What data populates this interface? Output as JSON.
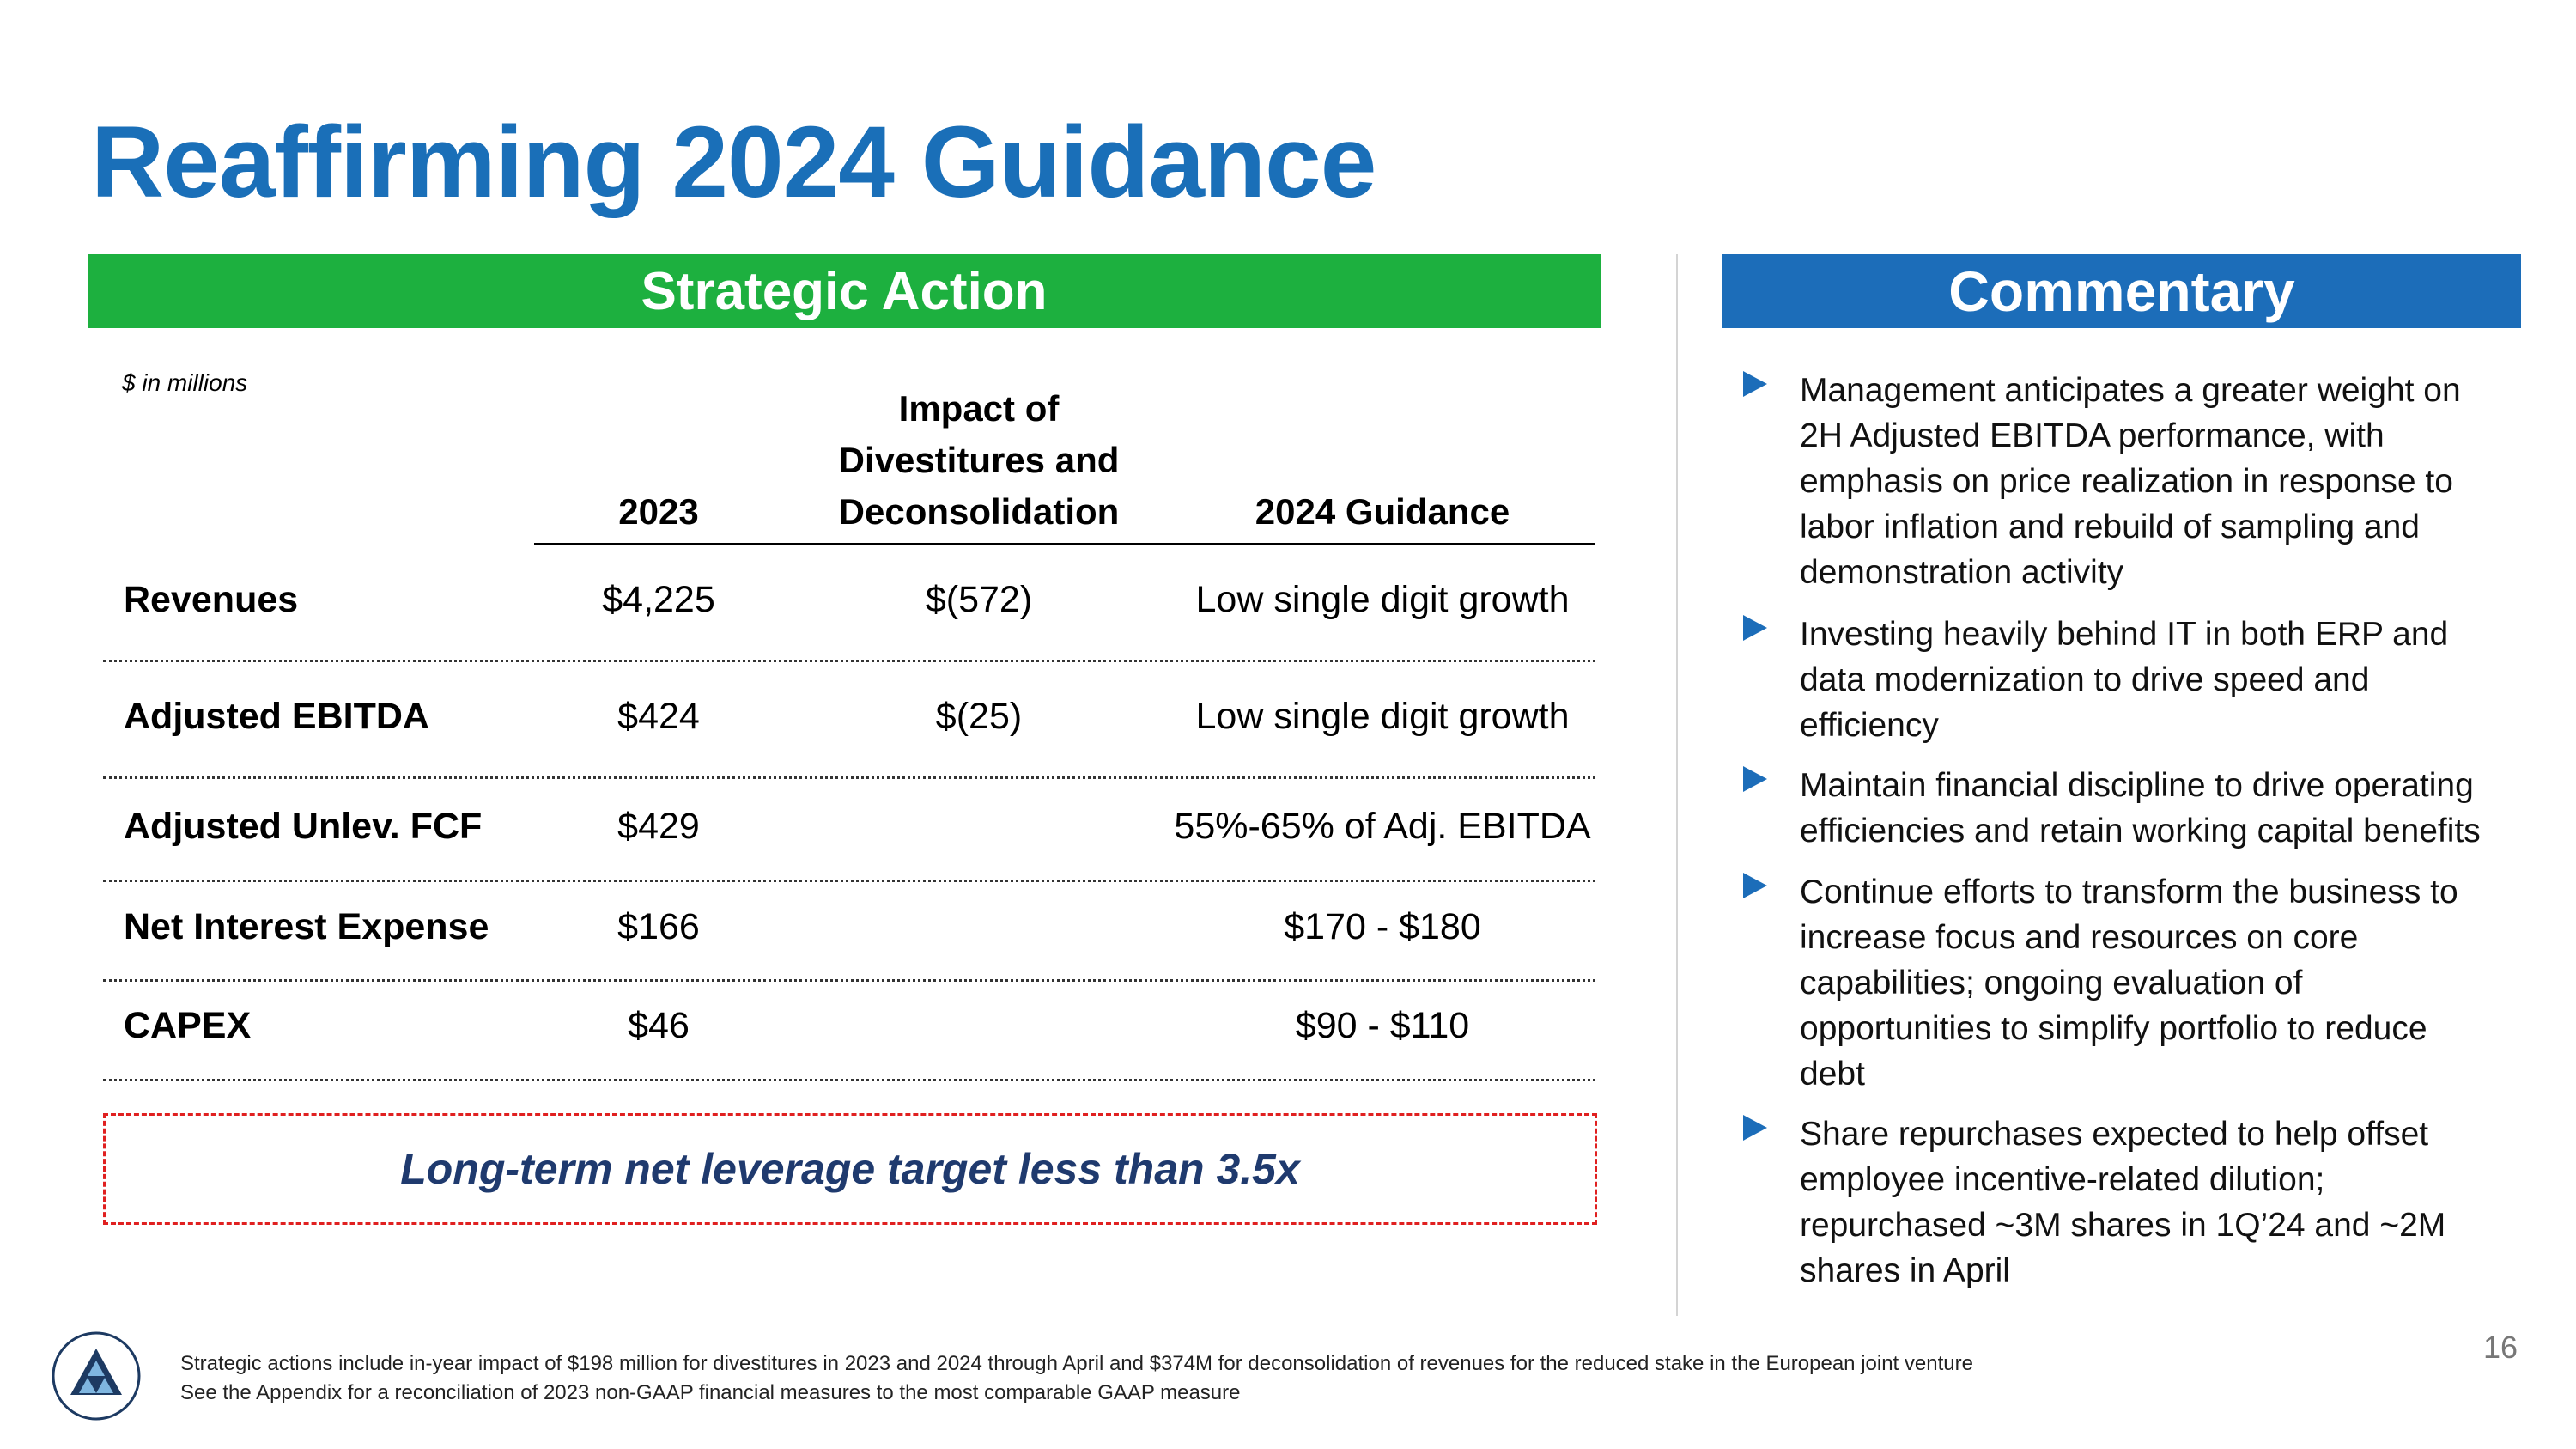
{
  "title": "Reaffirming 2024 Guidance",
  "left_banner": "Strategic Action",
  "right_banner": "Commentary",
  "units_note": "$ in millions",
  "table": {
    "columns": {
      "c2023": "2023",
      "impact": [
        "Impact of",
        "Divestitures and",
        "Deconsolidation"
      ],
      "guidance": "2024 Guidance"
    },
    "rows": [
      {
        "label": "Revenues",
        "y2023": "$4,225",
        "impact": "$(572)",
        "guidance": "Low single digit growth"
      },
      {
        "label": "Adjusted EBITDA",
        "y2023": "$424",
        "impact": "$(25)",
        "guidance": "Low single digit growth"
      },
      {
        "label": "Adjusted Unlev. FCF",
        "y2023": "$429",
        "impact": "",
        "guidance": "55%-65% of Adj. EBITDA"
      },
      {
        "label": "Net Interest Expense",
        "y2023": "$166",
        "impact": "",
        "guidance": "$170 - $180"
      },
      {
        "label": "CAPEX",
        "y2023": "$46",
        "impact": "",
        "guidance": "$90 - $110"
      }
    ]
  },
  "leverage_target": "Long-term net leverage target less than 3.5x",
  "commentary": [
    [
      "Management anticipates a greater weight on",
      "2H Adjusted EBITDA performance, with",
      "emphasis on price realization in response to",
      "labor inflation and rebuild of sampling and",
      "demonstration activity"
    ],
    [
      "Investing heavily behind IT in both ERP and",
      "data modernization to drive speed and",
      "efficiency"
    ],
    [
      "Maintain financial discipline to drive operating",
      "efficiencies and retain working capital benefits"
    ],
    [
      "Continue efforts to transform the business to",
      "increase focus and resources on core",
      "capabilities; ongoing evaluation of",
      "opportunities to simplify portfolio to reduce",
      "debt"
    ],
    [
      "Share repurchases expected to help offset",
      "employee incentive-related dilution;",
      "repurchased ~3M shares in 1Q’24 and ~2M",
      "shares in April"
    ]
  ],
  "footnotes": [
    "Strategic actions include in-year impact of $198 million for divestitures in 2023 and 2024 through April and $374M for deconsolidation of revenues for the reduced stake in the European joint venture",
    "See the Appendix for a reconciliation of 2023 non-GAAP financial measures to the most comparable GAAP measure"
  ],
  "page_number": "16",
  "colors": {
    "title": "#1a6fb8",
    "green": "#1db03f",
    "blue": "#1c6db9",
    "dashed": "#e02020",
    "leverage_text": "#1f3a6e"
  },
  "icons": {
    "bullet": "triangle-right-icon",
    "logo": "company-logo-icon"
  }
}
